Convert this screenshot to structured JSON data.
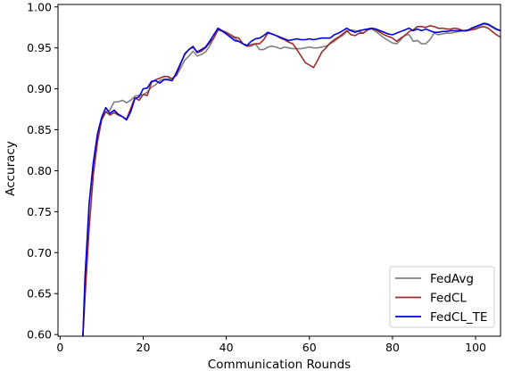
{
  "chart_data": {
    "type": "line",
    "title": "",
    "xlabel": "Communication Rounds",
    "ylabel": "Accuracy",
    "xlim": [
      -0.5,
      106
    ],
    "ylim": [
      0.598,
      1.003
    ],
    "xticks": [
      0,
      20,
      40,
      60,
      80,
      100
    ],
    "yticks": [
      0.6,
      0.65,
      0.7,
      0.75,
      0.8,
      0.85,
      0.9,
      0.95,
      1.0
    ],
    "xtick_labels": [
      "0",
      "20",
      "40",
      "60",
      "80",
      "100"
    ],
    "ytick_labels": [
      "0.60",
      "0.65",
      "0.70",
      "0.75",
      "0.80",
      "0.85",
      "0.90",
      "0.95",
      "1.00"
    ],
    "grid": false,
    "legend_position": "lower-right",
    "series": [
      {
        "name": "FedAvg",
        "color": "#808080",
        "x": [
          5.5,
          6,
          7,
          8,
          9,
          10,
          11,
          12,
          13,
          14,
          15,
          16,
          17,
          18,
          19,
          20,
          21,
          22,
          23,
          24,
          25,
          26,
          27,
          28,
          29,
          30,
          31,
          32,
          33,
          34,
          35,
          36,
          37,
          38,
          39,
          40,
          41,
          42,
          43,
          44,
          45,
          46,
          47,
          48,
          49,
          50,
          51,
          52,
          53,
          54,
          55,
          56,
          57,
          58,
          59,
          60,
          61,
          62,
          63,
          64,
          65,
          66,
          67,
          68,
          69,
          70,
          71,
          72,
          73,
          74,
          75,
          76,
          77,
          78,
          79,
          80,
          81,
          82,
          83,
          84,
          85,
          86,
          87,
          88,
          89,
          90,
          91,
          92,
          93,
          94,
          95,
          96,
          97,
          98,
          99,
          100,
          101,
          102,
          103,
          104,
          105,
          106
        ],
        "values": [
          0.598,
          0.66,
          0.76,
          0.81,
          0.84,
          0.862,
          0.872,
          0.874,
          0.884,
          0.884,
          0.886,
          0.883,
          0.886,
          0.891,
          0.892,
          0.893,
          0.896,
          0.902,
          0.905,
          0.91,
          0.912,
          0.912,
          0.913,
          0.916,
          0.925,
          0.935,
          0.94,
          0.946,
          0.94,
          0.942,
          0.945,
          0.952,
          0.962,
          0.972,
          0.97,
          0.967,
          0.964,
          0.962,
          0.958,
          0.955,
          0.952,
          0.952,
          0.955,
          0.948,
          0.948,
          0.951,
          0.952,
          0.951,
          0.949,
          0.951,
          0.95,
          0.949,
          0.949,
          0.949,
          0.95,
          0.951,
          0.95,
          0.95,
          0.951,
          0.952,
          0.955,
          0.958,
          0.962,
          0.965,
          0.97,
          0.972,
          0.971,
          0.97,
          0.968,
          0.972,
          0.973,
          0.97,
          0.966,
          0.962,
          0.959,
          0.956,
          0.955,
          0.96,
          0.966,
          0.966,
          0.958,
          0.959,
          0.955,
          0.955,
          0.96,
          0.968,
          0.966,
          0.967,
          0.968,
          0.968,
          0.969,
          0.97,
          0.971,
          0.972,
          0.972,
          0.975,
          0.977,
          0.979,
          0.978,
          0.975,
          0.972,
          0.971
        ]
      },
      {
        "name": "FedCL",
        "color": "#9b2d2d",
        "x": [
          5.5,
          6,
          7,
          8,
          9,
          10,
          11,
          12,
          13,
          14,
          15,
          16,
          17,
          18,
          19,
          20,
          21,
          22,
          23,
          24,
          25,
          26,
          27,
          28,
          29,
          30,
          31,
          32,
          33,
          34,
          35,
          36,
          37,
          38,
          39,
          40,
          41,
          42,
          43,
          44,
          45,
          46,
          47,
          48,
          49,
          50,
          51,
          52,
          53,
          54,
          55,
          56,
          57,
          58,
          59,
          60,
          61,
          62,
          63,
          64,
          65,
          66,
          67,
          68,
          69,
          70,
          71,
          72,
          73,
          74,
          75,
          76,
          77,
          78,
          79,
          80,
          81,
          82,
          83,
          84,
          85,
          86,
          87,
          88,
          89,
          90,
          91,
          92,
          93,
          94,
          95,
          96,
          97,
          98,
          99,
          100,
          101,
          102,
          103,
          104,
          105,
          106
        ],
        "values": [
          0.598,
          0.645,
          0.73,
          0.795,
          0.835,
          0.862,
          0.872,
          0.868,
          0.871,
          0.868,
          0.866,
          0.863,
          0.876,
          0.889,
          0.886,
          0.893,
          0.892,
          0.908,
          0.911,
          0.913,
          0.915,
          0.915,
          0.912,
          0.917,
          0.93,
          0.943,
          0.948,
          0.952,
          0.944,
          0.946,
          0.95,
          0.956,
          0.962,
          0.972,
          0.971,
          0.969,
          0.966,
          0.963,
          0.962,
          0.955,
          0.952,
          0.954,
          0.955,
          0.955,
          0.96,
          0.968,
          0.967,
          0.965,
          0.962,
          0.96,
          0.957,
          0.955,
          0.948,
          0.94,
          0.932,
          0.929,
          0.926,
          0.935,
          0.945,
          0.95,
          0.956,
          0.96,
          0.963,
          0.967,
          0.971,
          0.966,
          0.965,
          0.968,
          0.968,
          0.972,
          0.974,
          0.972,
          0.969,
          0.966,
          0.964,
          0.962,
          0.958,
          0.962,
          0.965,
          0.97,
          0.972,
          0.976,
          0.976,
          0.975,
          0.977,
          0.976,
          0.974,
          0.974,
          0.973,
          0.973,
          0.974,
          0.973,
          0.971,
          0.971,
          0.972,
          0.973,
          0.975,
          0.976,
          0.974,
          0.97,
          0.966,
          0.963
        ]
      },
      {
        "name": "FedCL_TE",
        "color": "#0000dd",
        "x": [
          5.5,
          6,
          7,
          8,
          9,
          10,
          11,
          12,
          13,
          14,
          15,
          16,
          17,
          18,
          19,
          20,
          21,
          22,
          23,
          24,
          25,
          26,
          27,
          28,
          29,
          30,
          31,
          32,
          33,
          34,
          35,
          36,
          37,
          38,
          39,
          40,
          41,
          42,
          43,
          44,
          45,
          46,
          47,
          48,
          49,
          50,
          51,
          52,
          53,
          54,
          55,
          56,
          57,
          58,
          59,
          60,
          61,
          62,
          63,
          64,
          65,
          66,
          67,
          68,
          69,
          70,
          71,
          72,
          73,
          74,
          75,
          76,
          77,
          78,
          79,
          80,
          81,
          82,
          83,
          84,
          85,
          86,
          87,
          88,
          89,
          90,
          91,
          92,
          93,
          94,
          95,
          96,
          97,
          98,
          99,
          100,
          101,
          102,
          103,
          104,
          105,
          106
        ],
        "values": [
          0.598,
          0.67,
          0.76,
          0.81,
          0.845,
          0.865,
          0.877,
          0.87,
          0.874,
          0.869,
          0.866,
          0.862,
          0.872,
          0.888,
          0.89,
          0.9,
          0.901,
          0.909,
          0.91,
          0.907,
          0.911,
          0.911,
          0.91,
          0.92,
          0.931,
          0.942,
          0.948,
          0.951,
          0.945,
          0.948,
          0.951,
          0.958,
          0.966,
          0.974,
          0.971,
          0.967,
          0.963,
          0.959,
          0.958,
          0.955,
          0.953,
          0.958,
          0.961,
          0.962,
          0.965,
          0.969,
          0.967,
          0.965,
          0.963,
          0.961,
          0.959,
          0.96,
          0.961,
          0.96,
          0.96,
          0.961,
          0.96,
          0.961,
          0.962,
          0.962,
          0.962,
          0.966,
          0.968,
          0.971,
          0.974,
          0.971,
          0.969,
          0.971,
          0.972,
          0.973,
          0.974,
          0.973,
          0.971,
          0.969,
          0.967,
          0.966,
          0.968,
          0.97,
          0.972,
          0.974,
          0.971,
          0.973,
          0.971,
          0.973,
          0.971,
          0.969,
          0.969,
          0.97,
          0.97,
          0.971,
          0.971,
          0.971,
          0.971,
          0.971,
          0.974,
          0.976,
          0.978,
          0.98,
          0.979,
          0.976,
          0.973,
          0.971
        ]
      }
    ]
  }
}
